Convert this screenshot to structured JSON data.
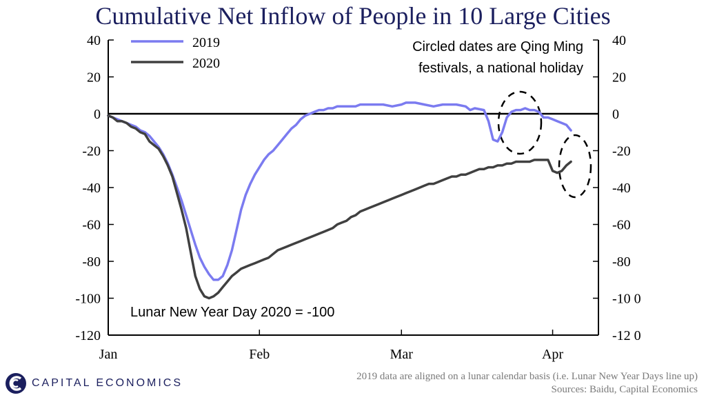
{
  "chart_data": {
    "type": "line",
    "title": "Cumulative Net Inflow of People in 10 Large Cities",
    "xlabel": "",
    "ylabel": "",
    "ylim": [
      -120,
      40
    ],
    "yticks": [
      40,
      20,
      0,
      -20,
      -40,
      -60,
      -80,
      -100,
      -120
    ],
    "yticks_labels": [
      "40",
      "20",
      "0",
      "-20",
      "-40",
      "-60",
      "-80",
      "-100",
      "-120"
    ],
    "yticks_right_labels": [
      "40",
      "20",
      "0",
      "-20",
      "-40",
      "-60",
      "-80",
      "-10 0",
      "-12 0"
    ],
    "xlim": [
      0,
      107
    ],
    "xticks": [
      {
        "label": "Jan",
        "day": 0
      },
      {
        "label": "Feb",
        "day": 33
      },
      {
        "label": "Mar",
        "day": 64
      },
      {
        "label": "Apr",
        "day": 97
      }
    ],
    "series": [
      {
        "name": "2019",
        "color": "#7b7bf0",
        "points": [
          [
            0,
            -1
          ],
          [
            1,
            -2
          ],
          [
            2,
            -3
          ],
          [
            3,
            -4
          ],
          [
            4,
            -5
          ],
          [
            5,
            -6
          ],
          [
            6,
            -7
          ],
          [
            7,
            -9
          ],
          [
            8,
            -10
          ],
          [
            9,
            -12
          ],
          [
            10,
            -15
          ],
          [
            11,
            -18
          ],
          [
            12,
            -22
          ],
          [
            13,
            -27
          ],
          [
            14,
            -33
          ],
          [
            15,
            -40
          ],
          [
            16,
            -47
          ],
          [
            17,
            -55
          ],
          [
            18,
            -63
          ],
          [
            19,
            -71
          ],
          [
            20,
            -78
          ],
          [
            21,
            -83
          ],
          [
            22,
            -87
          ],
          [
            23,
            -90
          ],
          [
            24,
            -90
          ],
          [
            25,
            -88
          ],
          [
            26,
            -82
          ],
          [
            27,
            -74
          ],
          [
            28,
            -63
          ],
          [
            29,
            -52
          ],
          [
            30,
            -44
          ],
          [
            31,
            -38
          ],
          [
            32,
            -33
          ],
          [
            33,
            -29
          ],
          [
            34,
            -25
          ],
          [
            35,
            -22
          ],
          [
            36,
            -20
          ],
          [
            37,
            -17
          ],
          [
            38,
            -14
          ],
          [
            39,
            -11
          ],
          [
            40,
            -8
          ],
          [
            41,
            -6
          ],
          [
            42,
            -3
          ],
          [
            43,
            -1
          ],
          [
            44,
            0
          ],
          [
            45,
            1
          ],
          [
            46,
            2
          ],
          [
            47,
            2
          ],
          [
            48,
            3
          ],
          [
            49,
            3
          ],
          [
            50,
            4
          ],
          [
            52,
            4
          ],
          [
            54,
            4
          ],
          [
            55,
            5
          ],
          [
            60,
            5
          ],
          [
            62,
            4
          ],
          [
            64,
            5
          ],
          [
            65,
            6
          ],
          [
            67,
            6
          ],
          [
            69,
            5
          ],
          [
            71,
            4
          ],
          [
            73,
            5
          ],
          [
            76,
            5
          ],
          [
            78,
            4
          ],
          [
            79,
            2
          ],
          [
            80,
            3
          ],
          [
            82,
            2
          ],
          [
            83,
            -4
          ],
          [
            84,
            -14
          ],
          [
            85,
            -15
          ],
          [
            86,
            -10
          ],
          [
            87,
            -2
          ],
          [
            88,
            1
          ],
          [
            89,
            2
          ],
          [
            90,
            2
          ],
          [
            91,
            3
          ],
          [
            92,
            2
          ],
          [
            93,
            2
          ],
          [
            94,
            1
          ],
          [
            95,
            -2
          ],
          [
            96,
            -2
          ],
          [
            97,
            -3
          ],
          [
            98,
            -4
          ],
          [
            99,
            -5
          ],
          [
            100,
            -6
          ],
          [
            101,
            -9
          ]
        ]
      },
      {
        "name": "2020",
        "color": "#404040",
        "points": [
          [
            0,
            -1
          ],
          [
            1,
            -2
          ],
          [
            2,
            -4
          ],
          [
            3,
            -4
          ],
          [
            4,
            -5
          ],
          [
            5,
            -7
          ],
          [
            6,
            -8
          ],
          [
            7,
            -10
          ],
          [
            8,
            -11
          ],
          [
            9,
            -15
          ],
          [
            10,
            -17
          ],
          [
            11,
            -19
          ],
          [
            12,
            -23
          ],
          [
            13,
            -28
          ],
          [
            14,
            -34
          ],
          [
            15,
            -43
          ],
          [
            16,
            -52
          ],
          [
            17,
            -62
          ],
          [
            18,
            -75
          ],
          [
            19,
            -88
          ],
          [
            20,
            -95
          ],
          [
            21,
            -99
          ],
          [
            22,
            -100
          ],
          [
            23,
            -99
          ],
          [
            24,
            -97
          ],
          [
            25,
            -94
          ],
          [
            26,
            -91
          ],
          [
            27,
            -88
          ],
          [
            28,
            -86
          ],
          [
            29,
            -84
          ],
          [
            30,
            -83
          ],
          [
            31,
            -82
          ],
          [
            32,
            -81
          ],
          [
            33,
            -80
          ],
          [
            34,
            -79
          ],
          [
            35,
            -78
          ],
          [
            36,
            -76
          ],
          [
            37,
            -74
          ],
          [
            38,
            -73
          ],
          [
            39,
            -72
          ],
          [
            40,
            -71
          ],
          [
            41,
            -70
          ],
          [
            42,
            -69
          ],
          [
            43,
            -68
          ],
          [
            44,
            -67
          ],
          [
            45,
            -66
          ],
          [
            46,
            -65
          ],
          [
            47,
            -64
          ],
          [
            48,
            -63
          ],
          [
            49,
            -62
          ],
          [
            50,
            -60
          ],
          [
            51,
            -59
          ],
          [
            52,
            -58
          ],
          [
            53,
            -56
          ],
          [
            54,
            -55
          ],
          [
            55,
            -53
          ],
          [
            56,
            -52
          ],
          [
            57,
            -51
          ],
          [
            58,
            -50
          ],
          [
            59,
            -49
          ],
          [
            60,
            -48
          ],
          [
            61,
            -47
          ],
          [
            62,
            -46
          ],
          [
            63,
            -45
          ],
          [
            64,
            -44
          ],
          [
            65,
            -43
          ],
          [
            66,
            -42
          ],
          [
            67,
            -41
          ],
          [
            68,
            -40
          ],
          [
            69,
            -39
          ],
          [
            70,
            -38
          ],
          [
            71,
            -38
          ],
          [
            72,
            -37
          ],
          [
            73,
            -36
          ],
          [
            74,
            -35
          ],
          [
            75,
            -34
          ],
          [
            76,
            -34
          ],
          [
            77,
            -33
          ],
          [
            78,
            -33
          ],
          [
            79,
            -32
          ],
          [
            80,
            -31
          ],
          [
            81,
            -30
          ],
          [
            82,
            -30
          ],
          [
            83,
            -29
          ],
          [
            84,
            -29
          ],
          [
            85,
            -28
          ],
          [
            86,
            -28
          ],
          [
            87,
            -27
          ],
          [
            88,
            -27
          ],
          [
            89,
            -26
          ],
          [
            90,
            -26
          ],
          [
            91,
            -26
          ],
          [
            92,
            -26
          ],
          [
            93,
            -25
          ],
          [
            94,
            -25
          ],
          [
            95,
            -25
          ],
          [
            96,
            -25
          ],
          [
            97,
            -31
          ],
          [
            98,
            -32
          ],
          [
            99,
            -31
          ],
          [
            100,
            -28
          ],
          [
            101,
            -26
          ]
        ]
      }
    ],
    "legend": {
      "position": "top-left",
      "entries": [
        "2019",
        "2020"
      ]
    },
    "annotations": {
      "holiday_note_line1": "Circled dates are Qing Ming",
      "holiday_note_line2": "festivals, a national holiday",
      "lunar_note": "Lunar New Year Day 2020 = -100"
    }
  },
  "footer": {
    "line1": "2019 data are aligned on a lunar calendar basis (i.e. Lunar New Year Days line up)",
    "line2": "Sources: Baidu, Capital Economics"
  },
  "brand": {
    "name": "CAPITAL ECONOMICS",
    "logo_icon": "capital-economics-logo-icon",
    "color": "#1b1f5e"
  }
}
